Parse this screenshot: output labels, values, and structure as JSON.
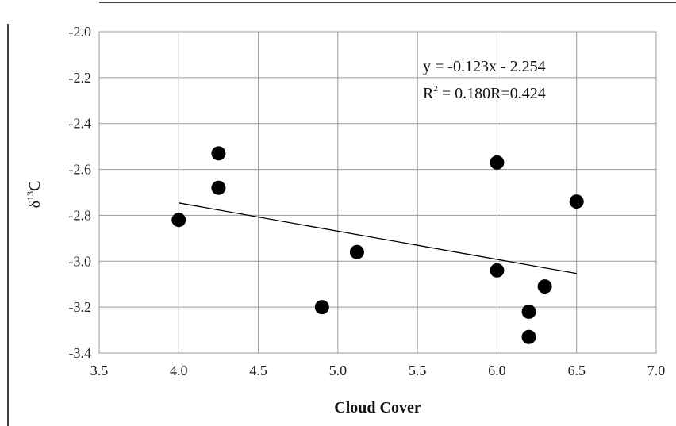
{
  "chart_data": {
    "type": "scatter",
    "xlabel": "Cloud Cover",
    "ylabel": "δ¹³C",
    "xlim": [
      3.5,
      7.0
    ],
    "ylim": [
      -3.4,
      -2.0
    ],
    "x_ticks": [
      "3.5",
      "4.0",
      "4.5",
      "5.0",
      "5.5",
      "6.0",
      "6.5",
      "7.0"
    ],
    "y_ticks": [
      "-2.0",
      "-2.2",
      "-2.4",
      "-2.6",
      "-2.8",
      "-3.0",
      "-3.2",
      "-3.4"
    ],
    "grid": true,
    "points": [
      {
        "x": 4.0,
        "y": -2.82
      },
      {
        "x": 4.25,
        "y": -2.53
      },
      {
        "x": 4.25,
        "y": -2.68
      },
      {
        "x": 4.9,
        "y": -3.2
      },
      {
        "x": 5.12,
        "y": -2.96
      },
      {
        "x": 6.0,
        "y": -2.57
      },
      {
        "x": 6.0,
        "y": -3.04
      },
      {
        "x": 6.2,
        "y": -3.22
      },
      {
        "x": 6.2,
        "y": -3.33
      },
      {
        "x": 6.3,
        "y": -3.11
      },
      {
        "x": 6.5,
        "y": -2.74
      }
    ],
    "trendline": {
      "slope": -0.123,
      "intercept": -2.254,
      "x_range": [
        4.0,
        6.5
      ]
    },
    "annotations": {
      "equation": "y = -0.123x - 2.254",
      "r_squared_prefix": "R",
      "r_squared_suffix": " = 0.180R=0.424"
    }
  }
}
